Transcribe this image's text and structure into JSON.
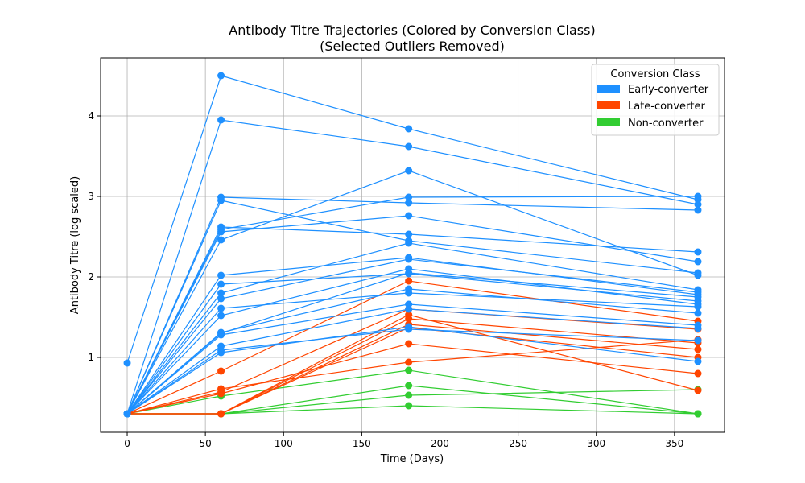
{
  "chart_data": {
    "type": "line",
    "title_lines": [
      "Antibody Titre Trajectories (Colored by Conversion Class)",
      "(Selected Outliers Removed)"
    ],
    "xlabel": "Time (Days)",
    "ylabel": "Antibody Titre (log scaled)",
    "xlim": [
      -17,
      382
    ],
    "ylim": [
      0.07,
      4.72
    ],
    "xticks": [
      0,
      50,
      100,
      150,
      200,
      250,
      300,
      350
    ],
    "yticks": [
      1,
      2,
      3,
      4
    ],
    "grid": true,
    "legend": {
      "title": "Conversion Class",
      "placement": "top-right",
      "entries": [
        {
          "name": "Early-converter",
          "color": "#1e90ff"
        },
        {
          "name": "Late-converter",
          "color": "#ff4500"
        },
        {
          "name": "Non-converter",
          "color": "#32cd32"
        }
      ]
    },
    "x": [
      0,
      60,
      180,
      365
    ],
    "series": [
      {
        "class": "Early-converter",
        "values": [
          0.93,
          4.5,
          3.84,
          2.96
        ]
      },
      {
        "class": "Early-converter",
        "values": [
          0.3,
          3.95,
          3.62,
          2.9
        ]
      },
      {
        "class": "Early-converter",
        "values": [
          0.3,
          2.99,
          2.92,
          2.83
        ]
      },
      {
        "class": "Early-converter",
        "values": [
          0.3,
          2.95,
          2.45,
          2.05
        ]
      },
      {
        "class": "Early-converter",
        "values": [
          0.3,
          2.62,
          2.53,
          2.31
        ]
      },
      {
        "class": "Early-converter",
        "values": [
          0.3,
          2.59,
          2.99,
          3.0
        ]
      },
      {
        "class": "Early-converter",
        "values": [
          0.3,
          2.56,
          2.76,
          2.19
        ]
      },
      {
        "class": "Early-converter",
        "values": [
          0.3,
          2.46,
          3.32,
          2.02
        ]
      },
      {
        "class": "Early-converter",
        "values": [
          0.3,
          2.02,
          2.24,
          1.78
        ]
      },
      {
        "class": "Early-converter",
        "values": [
          0.3,
          1.91,
          2.04,
          1.7
        ]
      },
      {
        "class": "Early-converter",
        "values": [
          0.3,
          1.8,
          2.42,
          1.84
        ]
      },
      {
        "class": "Early-converter",
        "values": [
          0.3,
          1.73,
          2.22,
          1.81
        ]
      },
      {
        "class": "Early-converter",
        "values": [
          0.3,
          1.61,
          1.8,
          1.63
        ]
      },
      {
        "class": "Early-converter",
        "values": [
          0.3,
          1.52,
          2.1,
          1.66
        ]
      },
      {
        "class": "Early-converter",
        "values": [
          0.3,
          1.31,
          1.85,
          1.55
        ]
      },
      {
        "class": "Early-converter",
        "values": [
          0.3,
          1.28,
          1.66,
          1.4
        ]
      },
      {
        "class": "Early-converter",
        "values": [
          0.3,
          1.14,
          1.6,
          1.36
        ]
      },
      {
        "class": "Early-converter",
        "values": [
          0.3,
          1.09,
          1.35,
          1.21
        ]
      },
      {
        "class": "Early-converter",
        "values": [
          0.3,
          1.06,
          1.38,
          0.95
        ]
      },
      {
        "class": "Early-converter",
        "values": [
          0.3,
          1.3,
          2.05,
          1.75
        ]
      },
      {
        "class": "Late-converter",
        "values": [
          0.3,
          0.83,
          1.95,
          1.45
        ]
      },
      {
        "class": "Late-converter",
        "values": [
          0.3,
          0.61,
          0.94,
          1.22
        ]
      },
      {
        "class": "Late-converter",
        "values": [
          0.3,
          0.57,
          1.6,
          1.35
        ]
      },
      {
        "class": "Late-converter",
        "values": [
          0.3,
          0.55,
          1.17,
          0.8
        ]
      },
      {
        "class": "Late-converter",
        "values": [
          0.3,
          0.3,
          1.48,
          1.18
        ]
      },
      {
        "class": "Late-converter",
        "values": [
          0.3,
          0.3,
          1.41,
          1.1
        ]
      },
      {
        "class": "Late-converter",
        "values": [
          0.3,
          0.3,
          1.37,
          1.0
        ]
      },
      {
        "class": "Late-converter",
        "values": [
          0.3,
          0.3,
          1.53,
          0.59
        ]
      },
      {
        "class": "Non-converter",
        "values": [
          0.3,
          0.52,
          0.84,
          0.3
        ]
      },
      {
        "class": "Non-converter",
        "values": [
          0.3,
          0.3,
          0.65,
          0.3
        ]
      },
      {
        "class": "Non-converter",
        "values": [
          0.3,
          0.3,
          0.53,
          0.6
        ]
      },
      {
        "class": "Non-converter",
        "values": [
          0.3,
          0.3,
          0.4,
          0.3
        ]
      }
    ]
  }
}
